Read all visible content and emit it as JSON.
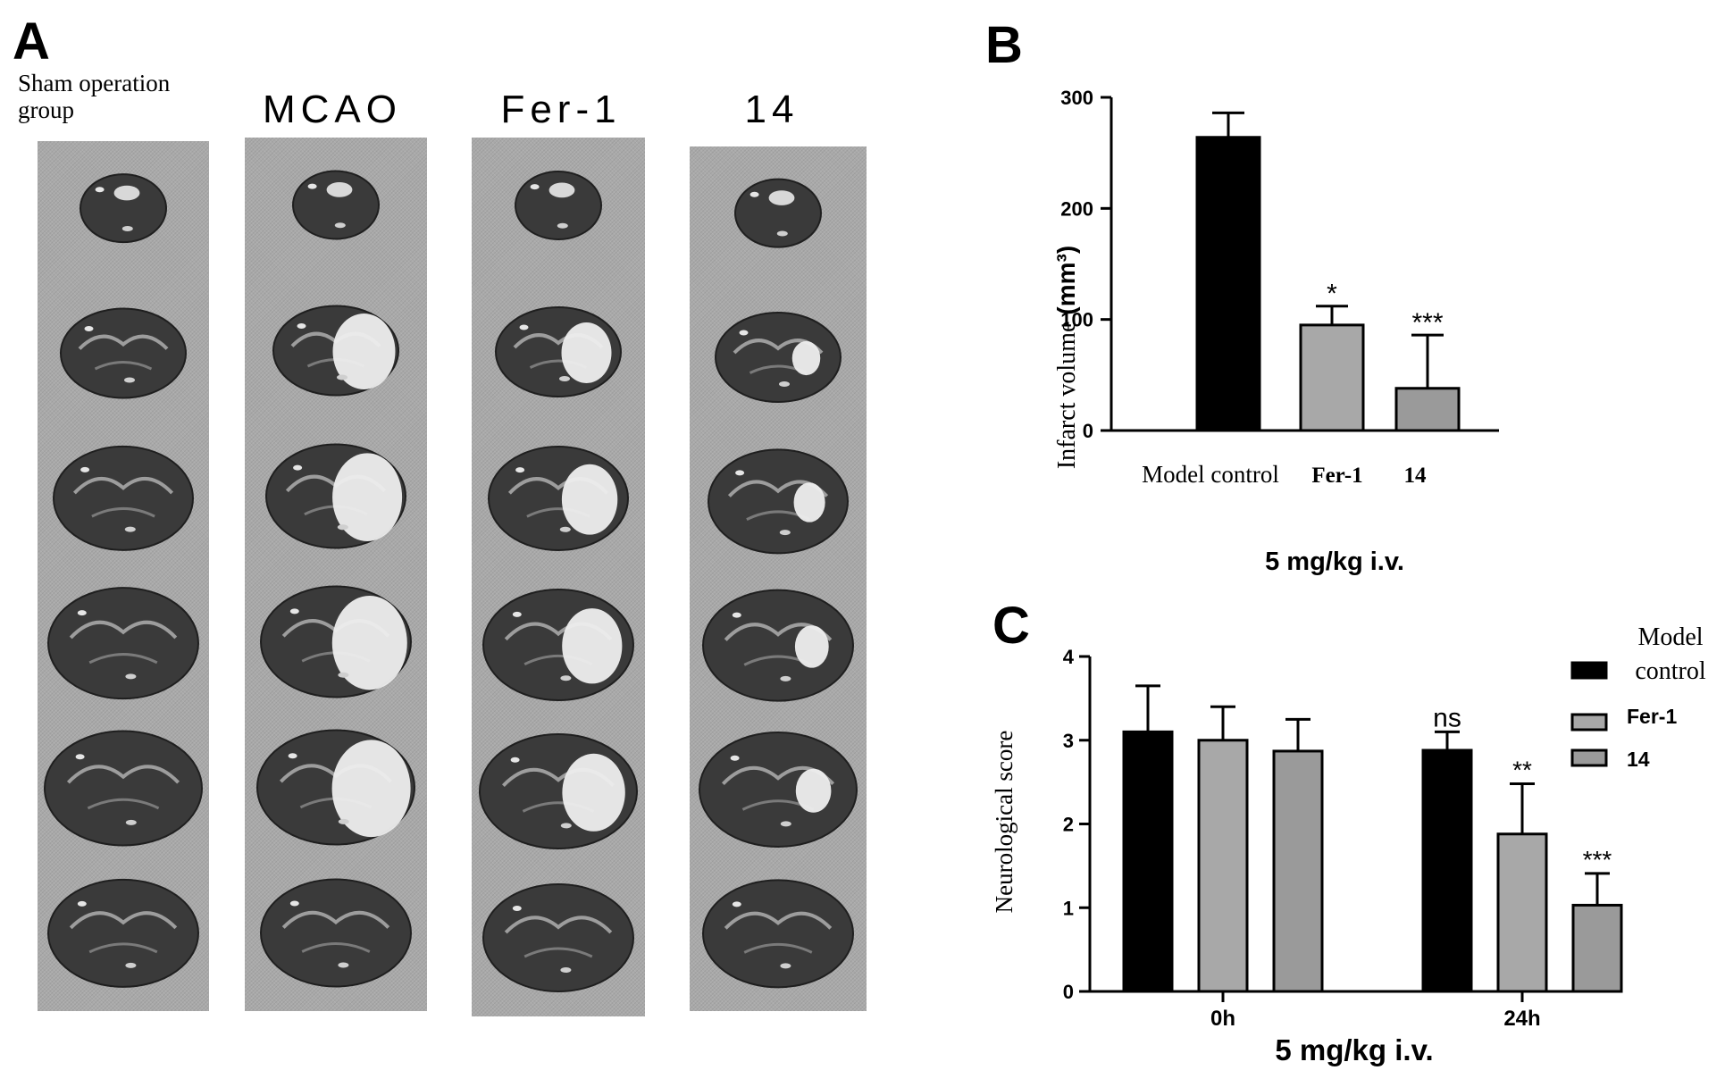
{
  "panels": {
    "a": {
      "letter": "A",
      "columns": [
        {
          "title": "Sham operation group",
          "lesion": "none"
        },
        {
          "title": "MCAO",
          "lesion": "large"
        },
        {
          "title": "Fer-1",
          "lesion": "medium"
        },
        {
          "title": "14",
          "lesion": "small"
        }
      ],
      "slice_count": 6
    },
    "b": {
      "letter": "B"
    },
    "c": {
      "letter": "C"
    }
  },
  "chart_data": [
    {
      "panel": "B",
      "type": "bar",
      "categories": [
        "Model control",
        "Fer-1",
        "14"
      ],
      "category_font": [
        "serif",
        "serif-bold",
        "serif-bold"
      ],
      "values": [
        264,
        95,
        38
      ],
      "errors": [
        22,
        17,
        48
      ],
      "colors": [
        "#000000",
        "#a8a8a8",
        "#9a9a9a"
      ],
      "significance": [
        "",
        "*",
        "***"
      ],
      "ylabel": "Infarct volume (mm³)",
      "ylabel_main": "Infarct volume ",
      "ylabel_unit": "(mm³)",
      "xlabel": "5 mg/kg i.v.",
      "ylim": [
        0,
        300
      ],
      "yticks": [
        0,
        100,
        200,
        300
      ]
    },
    {
      "panel": "C",
      "type": "bar",
      "categories": [
        "0h",
        "24h"
      ],
      "series": [
        {
          "name": "Model control",
          "name_lines": [
            "Model",
            "control"
          ],
          "color": "#000000",
          "values": [
            3.1,
            2.88
          ],
          "errors": [
            0.55,
            0.22
          ],
          "significance": [
            "",
            "ns"
          ]
        },
        {
          "name": "Fer-1",
          "name_lines": [
            "Fer-1"
          ],
          "color": "#a8a8a8",
          "values": [
            3.0,
            1.88
          ],
          "errors": [
            0.4,
            0.6
          ],
          "significance": [
            "",
            "**"
          ]
        },
        {
          "name": "14",
          "name_lines": [
            "14"
          ],
          "color": "#9a9a9a",
          "values": [
            2.87,
            1.03
          ],
          "errors": [
            0.38,
            0.38
          ],
          "significance": [
            "",
            "***"
          ]
        }
      ],
      "ylabel": "Neurological score",
      "xlabel": "5 mg/kg i.v.",
      "ylim": [
        0,
        4
      ],
      "yticks": [
        0,
        1,
        2,
        3,
        4
      ],
      "legend": "right"
    }
  ]
}
